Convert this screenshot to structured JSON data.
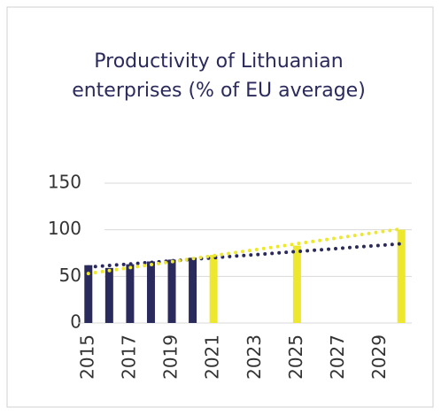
{
  "chart_data": {
    "type": "bar",
    "title": [
      "Productivity of Lithuanian",
      "enterprises (% of EU average)"
    ],
    "categories": [
      "2015",
      null,
      "2017",
      null,
      "2019",
      null,
      "2021",
      null,
      "2023",
      null,
      "2025",
      null,
      "2027",
      null,
      "2029",
      null
    ],
    "values": [
      62,
      59,
      63,
      66,
      68,
      70,
      73,
      null,
      null,
      null,
      83,
      null,
      null,
      null,
      null,
      100
    ],
    "colors": [
      "#2b2a5c",
      "#2b2a5c",
      "#2b2a5c",
      "#2b2a5c",
      "#2b2a5c",
      "#2b2a5c",
      "#ede82e",
      "#ede82e",
      "#ede82e",
      "#ede82e",
      "#ede82e",
      "#ede82e",
      "#ede82e",
      "#ede82e",
      "#ede82e",
      "#ede82e"
    ],
    "trendlines": [
      {
        "color": "#2b2a5c",
        "values": [
          60,
          61.7,
          63.3,
          65,
          66.7,
          68.3,
          70,
          71.7,
          73.3,
          75,
          76.7,
          78.3,
          80,
          81.7,
          83.3,
          85
        ]
      },
      {
        "color": "#ede82e",
        "values": [
          53,
          56.2,
          59.4,
          62.6,
          65.8,
          69,
          72.2,
          75.4,
          78.6,
          81.8,
          85,
          88.2,
          91.4,
          94.6,
          97.8,
          101
        ]
      }
    ],
    "ylim": [
      0,
      150
    ],
    "yticks": [
      0,
      50,
      100,
      150
    ],
    "grid": true
  }
}
